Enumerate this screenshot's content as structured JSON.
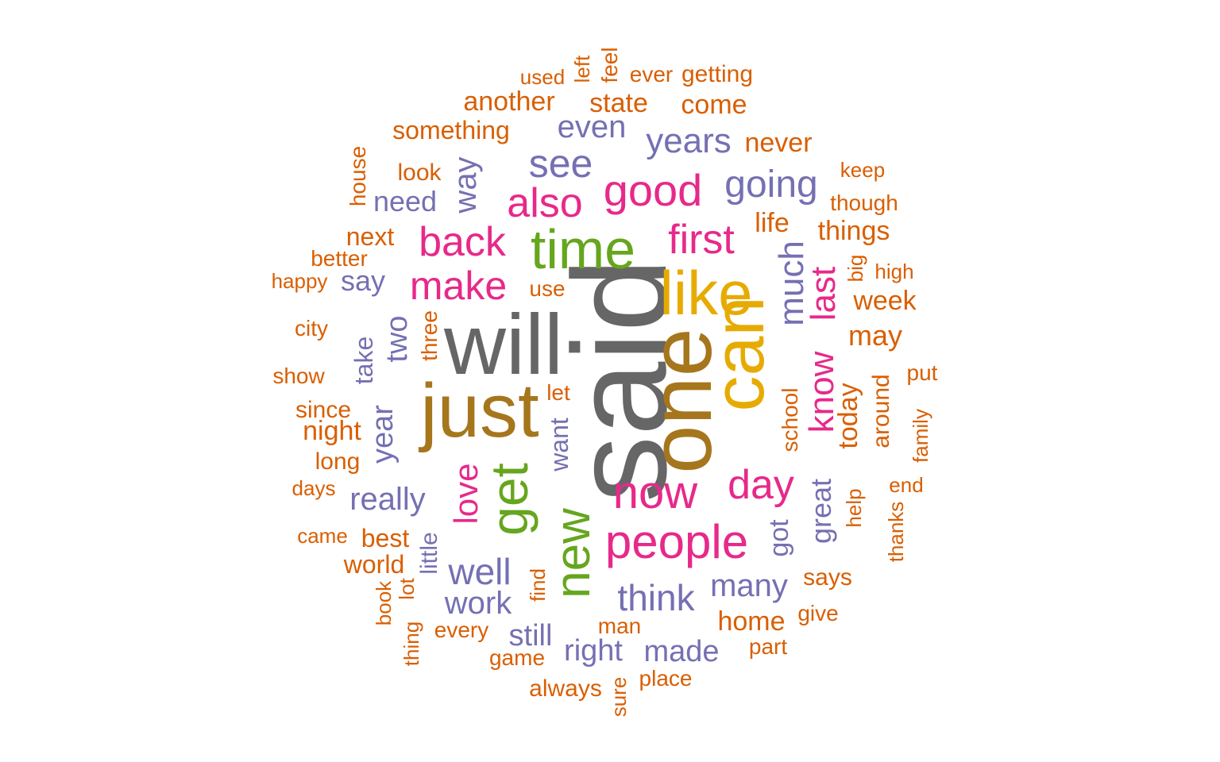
{
  "palette": {
    "orange": "#D95F02",
    "purple": "#7570B3",
    "magenta": "#E7298A",
    "green": "#66A61E",
    "gold": "#E6AB02",
    "brown": "#A6761D",
    "gray": "#666666"
  },
  "words": [
    {
      "text": "said",
      "color": "gray"
    },
    {
      "text": "will",
      "color": "gray"
    },
    {
      "text": "one",
      "color": "brown"
    },
    {
      "text": "just",
      "color": "brown"
    },
    {
      "text": "can",
      "color": "gold"
    },
    {
      "text": "like",
      "color": "gold"
    },
    {
      "text": "time",
      "color": "green"
    },
    {
      "text": "new",
      "color": "green"
    },
    {
      "text": "get",
      "color": "green"
    },
    {
      "text": "people",
      "color": "magenta"
    },
    {
      "text": "now",
      "color": "magenta"
    },
    {
      "text": "good",
      "color": "magenta"
    },
    {
      "text": "first",
      "color": "magenta"
    },
    {
      "text": "day",
      "color": "magenta"
    },
    {
      "text": "also",
      "color": "magenta"
    },
    {
      "text": "back",
      "color": "magenta"
    },
    {
      "text": "make",
      "color": "magenta"
    },
    {
      "text": "know",
      "color": "magenta"
    },
    {
      "text": "last",
      "color": "magenta"
    },
    {
      "text": "love",
      "color": "magenta"
    },
    {
      "text": "see",
      "color": "purple"
    },
    {
      "text": "years",
      "color": "purple"
    },
    {
      "text": "even",
      "color": "purple"
    },
    {
      "text": "going",
      "color": "purple"
    },
    {
      "text": "much",
      "color": "purple"
    },
    {
      "text": "think",
      "color": "purple"
    },
    {
      "text": "well",
      "color": "purple"
    },
    {
      "text": "many",
      "color": "purple"
    },
    {
      "text": "made",
      "color": "purple"
    },
    {
      "text": "right",
      "color": "purple"
    },
    {
      "text": "work",
      "color": "purple"
    },
    {
      "text": "really",
      "color": "purple"
    },
    {
      "text": "year",
      "color": "purple"
    },
    {
      "text": "two",
      "color": "purple"
    },
    {
      "text": "great",
      "color": "purple"
    },
    {
      "text": "way",
      "color": "purple"
    },
    {
      "text": "need",
      "color": "purple"
    },
    {
      "text": "still",
      "color": "purple"
    },
    {
      "text": "say",
      "color": "purple"
    },
    {
      "text": "want",
      "color": "purple"
    },
    {
      "text": "take",
      "color": "purple"
    },
    {
      "text": "little",
      "color": "purple"
    },
    {
      "text": "got",
      "color": "purple"
    },
    {
      "text": "another",
      "color": "orange"
    },
    {
      "text": "state",
      "color": "orange"
    },
    {
      "text": "come",
      "color": "orange"
    },
    {
      "text": "something",
      "color": "orange"
    },
    {
      "text": "never",
      "color": "orange"
    },
    {
      "text": "used",
      "color": "orange"
    },
    {
      "text": "left",
      "color": "orange"
    },
    {
      "text": "feel",
      "color": "orange"
    },
    {
      "text": "ever",
      "color": "orange"
    },
    {
      "text": "getting",
      "color": "orange"
    },
    {
      "text": "look",
      "color": "orange"
    },
    {
      "text": "house",
      "color": "orange"
    },
    {
      "text": "keep",
      "color": "orange"
    },
    {
      "text": "though",
      "color": "orange"
    },
    {
      "text": "life",
      "color": "orange"
    },
    {
      "text": "things",
      "color": "orange"
    },
    {
      "text": "next",
      "color": "orange"
    },
    {
      "text": "better",
      "color": "orange"
    },
    {
      "text": "happy",
      "color": "orange"
    },
    {
      "text": "use",
      "color": "orange"
    },
    {
      "text": "big",
      "color": "orange"
    },
    {
      "text": "high",
      "color": "orange"
    },
    {
      "text": "week",
      "color": "orange"
    },
    {
      "text": "city",
      "color": "orange"
    },
    {
      "text": "three",
      "color": "orange"
    },
    {
      "text": "may",
      "color": "orange"
    },
    {
      "text": "show",
      "color": "orange"
    },
    {
      "text": "put",
      "color": "orange"
    },
    {
      "text": "let",
      "color": "orange"
    },
    {
      "text": "since",
      "color": "orange"
    },
    {
      "text": "night",
      "color": "orange"
    },
    {
      "text": "school",
      "color": "orange"
    },
    {
      "text": "today",
      "color": "orange"
    },
    {
      "text": "around",
      "color": "orange"
    },
    {
      "text": "family",
      "color": "orange"
    },
    {
      "text": "long",
      "color": "orange"
    },
    {
      "text": "days",
      "color": "orange"
    },
    {
      "text": "end",
      "color": "orange"
    },
    {
      "text": "help",
      "color": "orange"
    },
    {
      "text": "thanks",
      "color": "orange"
    },
    {
      "text": "came",
      "color": "orange"
    },
    {
      "text": "best",
      "color": "orange"
    },
    {
      "text": "world",
      "color": "orange"
    },
    {
      "text": "find",
      "color": "orange"
    },
    {
      "text": "says",
      "color": "orange"
    },
    {
      "text": "book",
      "color": "orange"
    },
    {
      "text": "lot",
      "color": "orange"
    },
    {
      "text": "home",
      "color": "orange"
    },
    {
      "text": "give",
      "color": "orange"
    },
    {
      "text": "man",
      "color": "orange"
    },
    {
      "text": "every",
      "color": "orange"
    },
    {
      "text": "thing",
      "color": "orange"
    },
    {
      "text": "game",
      "color": "orange"
    },
    {
      "text": "part",
      "color": "orange"
    },
    {
      "text": "place",
      "color": "orange"
    },
    {
      "text": "always",
      "color": "orange"
    },
    {
      "text": "sure",
      "color": "orange"
    }
  ]
}
